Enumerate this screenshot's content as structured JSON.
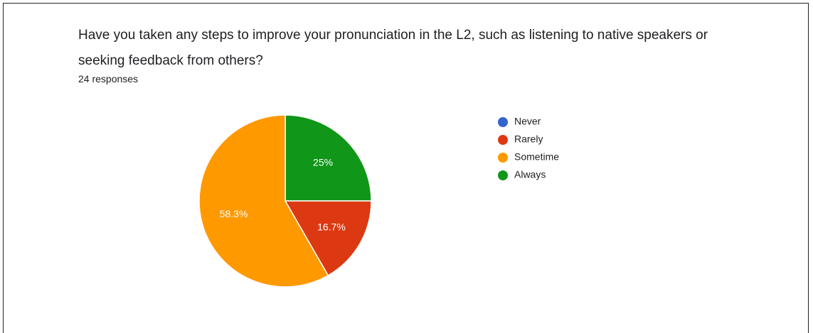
{
  "chart_data": {
    "type": "pie",
    "title": "Have you taken any steps to improve your pronunciation in the L2, such as listening to native speakers or seeking feedback from others?",
    "subtitle": "24 responses",
    "categories": [
      "Never",
      "Rarely",
      "Sometime",
      "Always"
    ],
    "values": [
      0,
      16.7,
      58.3,
      25
    ],
    "value_labels": [
      null,
      "16.7%",
      "58.3%",
      "25%"
    ],
    "colors": [
      "#3366cc",
      "#dc3912",
      "#ff9900",
      "#109618"
    ],
    "legend": "right"
  }
}
